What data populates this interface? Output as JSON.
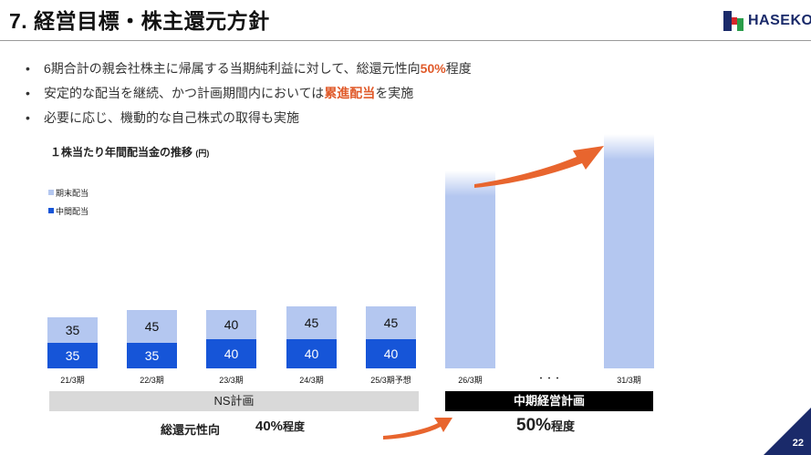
{
  "header": {
    "title": "7. 経営目標・株主還元方針",
    "logo_text": "HASEKO"
  },
  "bullets": [
    {
      "pre": "6期合計の親会社株主に帰属する当期純利益に対して、総還元性向",
      "hl": "50%",
      "post": "程度"
    },
    {
      "pre": "安定的な配当を継続、かつ計画期間内においては",
      "hl": "累進配当",
      "post": "を実施"
    },
    {
      "pre": "必要に応じ、機動的な自己株式の取得も実施",
      "hl": "",
      "post": ""
    }
  ],
  "chart_title": "１株当たり年間配当金の推移",
  "chart_unit": "(円)",
  "legend": {
    "year_end": "期末配当",
    "interim": "中間配当"
  },
  "colors": {
    "year_end": "#b4c7f0",
    "interim": "#1655d8",
    "accent": "#e8652e",
    "navy": "#1a2a6a"
  },
  "chart_data": {
    "type": "bar",
    "stacked": true,
    "categories": [
      "21/3期",
      "22/3期",
      "23/3期",
      "24/3期",
      "25/3期予想"
    ],
    "series": [
      {
        "name": "中間配当",
        "values": [
          35,
          35,
          40,
          40,
          40
        ]
      },
      {
        "name": "期末配当",
        "values": [
          35,
          45,
          40,
          45,
          45
        ]
      }
    ],
    "projected_categories": [
      "26/3期",
      "31/3期"
    ],
    "ellipsis": "・・・"
  },
  "bands": {
    "ns": "NS計画",
    "mtp": "中期経営計画"
  },
  "payout": {
    "label": "総還元性向",
    "ns_value": "40%",
    "ns_suffix": "程度",
    "mtp_value": "50%",
    "mtp_suffix": "程度"
  },
  "page_number": "22"
}
